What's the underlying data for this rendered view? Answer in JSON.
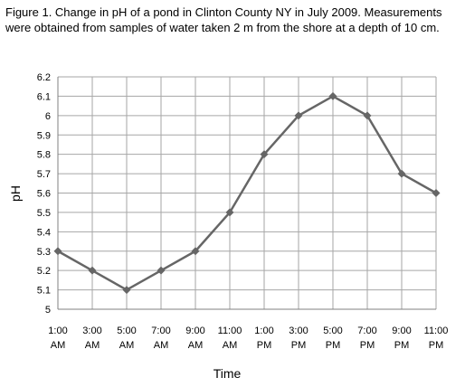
{
  "caption": "Figure 1. Change in pH of a pond in Clinton County NY in July 2009.  Measurements were obtained from samples of water taken 2 m from the shore at a depth of 10 cm.",
  "chart_data": {
    "type": "line",
    "title": "",
    "xlabel": "Time",
    "ylabel": "pH",
    "categories": [
      [
        "1:00",
        "AM"
      ],
      [
        "3:00",
        "AM"
      ],
      [
        "5:00",
        "AM"
      ],
      [
        "7:00",
        "AM"
      ],
      [
        "9:00",
        "AM"
      ],
      [
        "11:00",
        "AM"
      ],
      [
        "1:00",
        "PM"
      ],
      [
        "3:00",
        "PM"
      ],
      [
        "5:00",
        "PM"
      ],
      [
        "7:00",
        "PM"
      ],
      [
        "9:00",
        "PM"
      ],
      [
        "11:00",
        "PM"
      ]
    ],
    "values": [
      5.3,
      5.2,
      5.1,
      5.2,
      5.3,
      5.5,
      5.8,
      6.0,
      6.1,
      6.0,
      5.7,
      5.6
    ],
    "y_ticks": [
      "5",
      "5.1",
      "5.2",
      "5.3",
      "5.4",
      "5.5",
      "5.6",
      "5.7",
      "5.8",
      "5.9",
      "6",
      "6.1",
      "6.2"
    ],
    "ylim": [
      5,
      6.2
    ],
    "grid": true,
    "line_color": "#666666",
    "marker": "diamond",
    "grid_color": "#a6a6a6"
  }
}
